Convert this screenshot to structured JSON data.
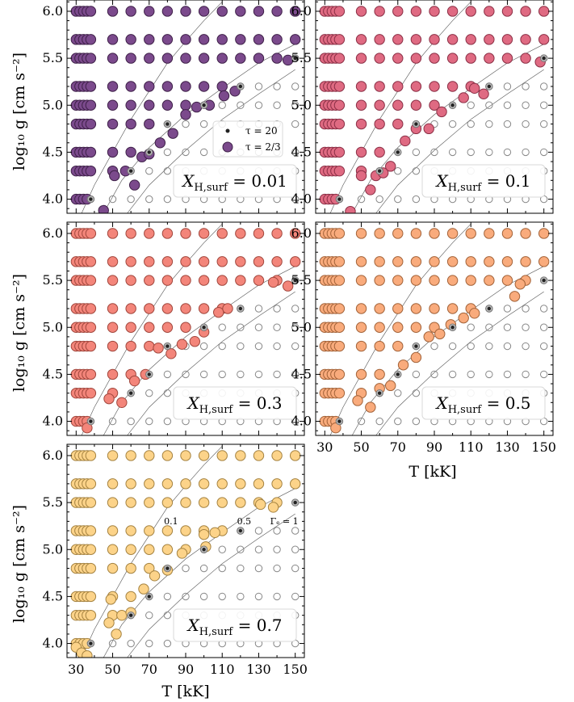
{
  "figure": {
    "ylabel": "log₁₀ g [cm s⁻²]",
    "xlabel": "T [kK]",
    "legend": {
      "tau20": "τ = 20",
      "tau23": "τ = 2/3",
      "placement": "upper-right of first panel"
    },
    "gamma_labels": [
      "0.1",
      "0.5",
      "Γₑ = 1"
    ]
  },
  "chart_data": {
    "type": "scatter",
    "xlim": [
      25,
      155
    ],
    "ylim": [
      3.85,
      6.12
    ],
    "xticks": [
      30,
      50,
      70,
      90,
      110,
      130,
      150
    ],
    "xtick_labels": [
      "30",
      "50",
      "70",
      "90",
      "110",
      "130",
      "150"
    ],
    "yticks": [
      4.0,
      4.5,
      5.0,
      5.5,
      6.0
    ],
    "ytick_labels": [
      "4.0",
      "4.5",
      "5.0",
      "5.5",
      "6.0"
    ],
    "grid_T": [
      30,
      32,
      34,
      36,
      38,
      50,
      60,
      70,
      80,
      90,
      100,
      110,
      120,
      130,
      140,
      150
    ],
    "grid_logg": [
      4.0,
      4.3,
      4.5,
      4.8,
      5.0,
      5.2,
      5.5,
      5.7,
      6.0
    ],
    "eddington_curves": [
      {
        "label": "0.1",
        "points": [
          [
            33,
            3.85
          ],
          [
            40,
            4.15
          ],
          [
            50,
            4.5
          ],
          [
            60,
            4.85
          ],
          [
            70,
            5.15
          ],
          [
            80,
            5.45
          ],
          [
            90,
            5.68
          ],
          [
            100,
            5.9
          ],
          [
            110,
            6.1
          ]
        ]
      },
      {
        "label": "0.5",
        "points": [
          [
            45,
            3.85
          ],
          [
            55,
            4.2
          ],
          [
            70,
            4.55
          ],
          [
            90,
            4.9
          ],
          [
            110,
            5.18
          ],
          [
            130,
            5.45
          ],
          [
            150,
            5.65
          ]
        ]
      },
      {
        "label": "Γₑ = 1",
        "points": [
          [
            58,
            3.85
          ],
          [
            70,
            4.15
          ],
          [
            90,
            4.52
          ],
          [
            110,
            4.85
          ],
          [
            130,
            5.12
          ],
          [
            150,
            5.38
          ]
        ]
      }
    ],
    "panels": [
      {
        "label": "X_H,surf = 0.01",
        "xh": "0.01",
        "color": "#7b4a8c",
        "stroke": "#3e2048",
        "converged_until": {
          "4.0": 36,
          "4.3": 50,
          "4.5": 60,
          "4.8": 70,
          "5.0": 90,
          "5.2": 110,
          "5.5": 140,
          "5.7": 150,
          "6.0": 150
        },
        "tau23_shifted": [
          [
            45,
            3.88
          ],
          [
            51,
            4.25
          ],
          [
            57,
            4.3
          ],
          [
            62,
            4.15
          ],
          [
            66,
            4.45
          ],
          [
            70,
            4.48
          ],
          [
            76,
            4.6
          ],
          [
            83,
            4.7
          ],
          [
            90,
            4.9
          ],
          [
            96,
            4.98
          ],
          [
            103,
            5.0
          ],
          [
            111,
            5.1
          ],
          [
            117,
            5.15
          ],
          [
            146,
            5.48
          ]
        ]
      },
      {
        "label": "X_H,surf = 0.1",
        "xh": "0.1",
        "color": "#df6a82",
        "stroke": "#8a2f45",
        "converged_until": {
          "4.0": 36,
          "4.3": 50,
          "4.5": 60,
          "4.8": 70,
          "5.0": 90,
          "5.2": 110,
          "5.5": 140,
          "5.7": 150,
          "6.0": 150
        },
        "tau23_shifted": [
          [
            44,
            3.87
          ],
          [
            50,
            4.25
          ],
          [
            55,
            4.1
          ],
          [
            58,
            4.25
          ],
          [
            62,
            4.28
          ],
          [
            66,
            4.35
          ],
          [
            74,
            4.62
          ],
          [
            80,
            4.75
          ],
          [
            87,
            4.75
          ],
          [
            94,
            4.93
          ],
          [
            106,
            5.08
          ],
          [
            112,
            5.18
          ],
          [
            117,
            5.12
          ],
          [
            148,
            5.46
          ]
        ]
      },
      {
        "label": "X_H,surf = 0.3",
        "xh": "0.3",
        "color": "#f3857a",
        "stroke": "#a0463c",
        "converged_until": {
          "4.0": 36,
          "4.3": 50,
          "4.5": 60,
          "4.8": 70,
          "5.0": 90,
          "5.2": 110,
          "5.5": 140,
          "5.7": 150,
          "6.0": 150
        },
        "tau23_shifted": [
          [
            36,
            3.93
          ],
          [
            48,
            4.24
          ],
          [
            55,
            4.2
          ],
          [
            62,
            4.43
          ],
          [
            68,
            4.5
          ],
          [
            75,
            4.78
          ],
          [
            82,
            4.72
          ],
          [
            88,
            4.82
          ],
          [
            95,
            4.85
          ],
          [
            100,
            4.95
          ],
          [
            108,
            5.16
          ],
          [
            113,
            5.2
          ],
          [
            138,
            5.48
          ],
          [
            146,
            5.44
          ]
        ]
      },
      {
        "label": "X_H,surf = 0.5",
        "xh": "0.5",
        "color": "#f9ab7c",
        "stroke": "#a26238",
        "converged_until": {
          "4.0": 36,
          "4.3": 50,
          "4.5": 60,
          "4.8": 70,
          "5.0": 90,
          "5.2": 110,
          "5.5": 140,
          "5.7": 150,
          "6.0": 150
        },
        "tau23_shifted": [
          [
            36,
            3.93
          ],
          [
            48,
            4.22
          ],
          [
            55,
            4.15
          ],
          [
            60,
            4.35
          ],
          [
            66,
            4.38
          ],
          [
            73,
            4.6
          ],
          [
            80,
            4.68
          ],
          [
            87,
            4.9
          ],
          [
            93,
            4.93
          ],
          [
            99,
            5.03
          ],
          [
            106,
            5.1
          ],
          [
            112,
            5.15
          ],
          [
            134,
            5.33
          ],
          [
            137,
            5.46
          ]
        ]
      },
      {
        "label": "X_H,surf = 0.7",
        "xh": "0.7",
        "color": "#fcd389",
        "stroke": "#a48240",
        "converged_until": {
          "4.0": 36,
          "4.3": 50,
          "4.5": 60,
          "4.8": 70,
          "5.0": 90,
          "5.2": 110,
          "5.5": 140,
          "5.7": 150,
          "6.0": 150
        },
        "tau23_shifted": [
          [
            30,
            3.96
          ],
          [
            33,
            3.9
          ],
          [
            36,
            3.87
          ],
          [
            48,
            4.22
          ],
          [
            49,
            4.47
          ],
          [
            52,
            4.1
          ],
          [
            55,
            4.3
          ],
          [
            60,
            4.33
          ],
          [
            67,
            4.58
          ],
          [
            73,
            4.72
          ],
          [
            80,
            4.78
          ],
          [
            88,
            4.96
          ],
          [
            101,
            5.03
          ],
          [
            100,
            5.16
          ],
          [
            106,
            5.18
          ],
          [
            131,
            5.48
          ],
          [
            138,
            5.45
          ]
        ]
      }
    ]
  }
}
